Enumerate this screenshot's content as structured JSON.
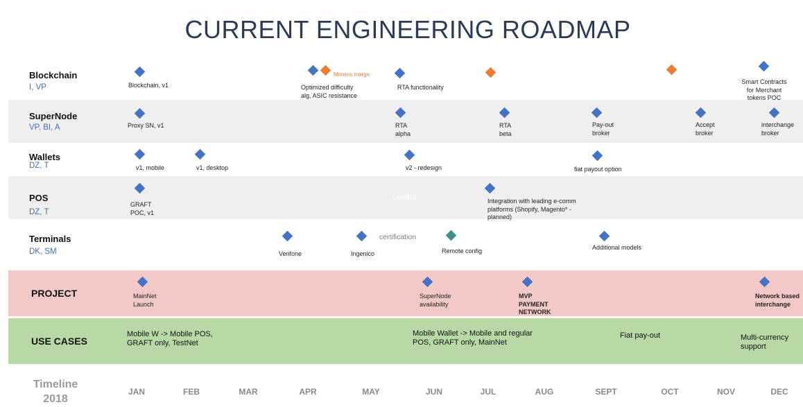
{
  "title": "CURRENT ENGINEERING ROADMAP",
  "rows": {
    "blockchain": {
      "name": "Blockchain",
      "sub": "I, VP"
    },
    "supernode": {
      "name": "SuperNode",
      "sub": "VP, BI, A"
    },
    "wallets": {
      "name": "Wallets",
      "sub": "DZ, T"
    },
    "pos": {
      "name": "POS",
      "sub": "DZ, T"
    },
    "terminals": {
      "name": "Terminals",
      "sub": "DK, SM"
    },
    "project": {
      "name": "PROJECT"
    },
    "use_cases": {
      "name": "USE CASES"
    }
  },
  "milestones": {
    "blockchain_v1": "Blockchain, v1",
    "optimized": "Optimized difficulty\nalg, ASIC resistance",
    "monero_merge": "Monero merge",
    "rta_functionality": "RTA functionality",
    "smart_contracts": "Smart Contracts\nfor Merchant\ntokens POC",
    "proxy_sn": "Proxy SN, v1",
    "rta_alpha": "RTA\nalpha",
    "rta_beta": "RTA\nbeta",
    "payout_broker": "Pay-out\nbroker",
    "accept_broker": "Accept\nbroker",
    "interchange_broker": "interchange\nbroker",
    "v1_mobile": "v1, mobile",
    "v1_desktop": "v1, desktop",
    "v2_redesign": "v2 - redesign",
    "fiat_payout_option": "fiat payout option",
    "graft_poc": "GRAFT\nPOC, v1",
    "faint_text": "Ubeffell",
    "ecomm": "Integration with leading e-comm\nplatforms (Shopify, Magento* -\nplanned)",
    "verifone": "Verifone",
    "ingenico": "Ingenico",
    "certification": "certification",
    "remote_config": "Remote config",
    "additional_models": "Additional models",
    "mainnet_launch": "MainNet\nLaunch",
    "supernode_availability": "SuperNode\navailability",
    "mvp_payment": "MVP\nPAYMENT\nNETWORK",
    "network_interchange": "Network based\ninterchange"
  },
  "use_cases": {
    "uc1": "Mobile W -> Mobile POS,\nGRAFT only, TestNet",
    "uc2": "Mobile Wallet -> Mobile and regular\nPOS, GRAFT only, MainNet",
    "uc3": "Fiat pay-out",
    "uc4": "Multi-currency\nsupport"
  },
  "timeline": {
    "title": "Timeline\n2018",
    "months": [
      "JAN",
      "FEB",
      "MAR",
      "APR",
      "MAY",
      "JUN",
      "JUL",
      "AUG",
      "SEPT",
      "OCT",
      "NOV",
      "DEC"
    ]
  },
  "colors": {
    "diamond_blue": "#4472c4",
    "diamond_orange": "#ed7d31",
    "diamond_teal": "#3f8f8a",
    "project_band": "#f2c9c6",
    "use_cases_band": "#b8d8a6",
    "row_band": "#efefef"
  }
}
